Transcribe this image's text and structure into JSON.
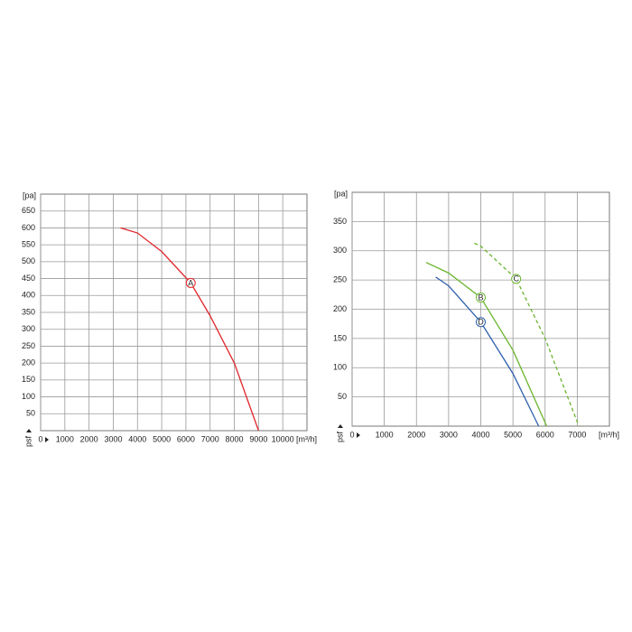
{
  "chart_data": [
    {
      "type": "line",
      "x_label": "[m³/h]",
      "y_label": "[pa]",
      "pressure_label": "psf",
      "xlim": [
        0,
        11000
      ],
      "xticks": [
        0,
        1000,
        2000,
        3000,
        4000,
        5000,
        6000,
        7000,
        8000,
        9000,
        10000
      ],
      "ylim": [
        0,
        700
      ],
      "yticks": [
        50,
        100,
        150,
        200,
        250,
        300,
        350,
        400,
        450,
        500,
        550,
        600,
        650
      ],
      "grid": true,
      "series": [
        {
          "name": "A",
          "color": "#e0252a",
          "dashed": false,
          "x": [
            3300,
            4000,
            5000,
            6200,
            7000,
            8000,
            9000
          ],
          "values": [
            600,
            585,
            530,
            437,
            340,
            200,
            0
          ]
        }
      ]
    },
    {
      "type": "line",
      "x_label": "[m³/h]",
      "y_label": "[pa]",
      "pressure_label": "psf",
      "xlim": [
        0,
        8000
      ],
      "xticks": [
        0,
        1000,
        2000,
        3000,
        4000,
        5000,
        6000,
        7000
      ],
      "ylim": [
        0,
        400
      ],
      "yticks": [
        50,
        100,
        150,
        200,
        250,
        300,
        350
      ],
      "grid": true,
      "series": [
        {
          "name": "B",
          "color": "#6ab52e",
          "dashed": false,
          "x": [
            2300,
            3000,
            4000,
            5000,
            6050
          ],
          "values": [
            280,
            262,
            220,
            130,
            0
          ]
        },
        {
          "name": "C",
          "color": "#6ab52e",
          "dashed": true,
          "x": [
            3800,
            4000,
            5100,
            6000,
            7050
          ],
          "values": [
            313,
            308,
            252,
            150,
            0
          ]
        },
        {
          "name": "D",
          "color": "#2c5fae",
          "dashed": false,
          "x": [
            2600,
            3000,
            4000,
            5000,
            5800
          ],
          "values": [
            255,
            240,
            178,
            90,
            0
          ]
        }
      ]
    }
  ]
}
